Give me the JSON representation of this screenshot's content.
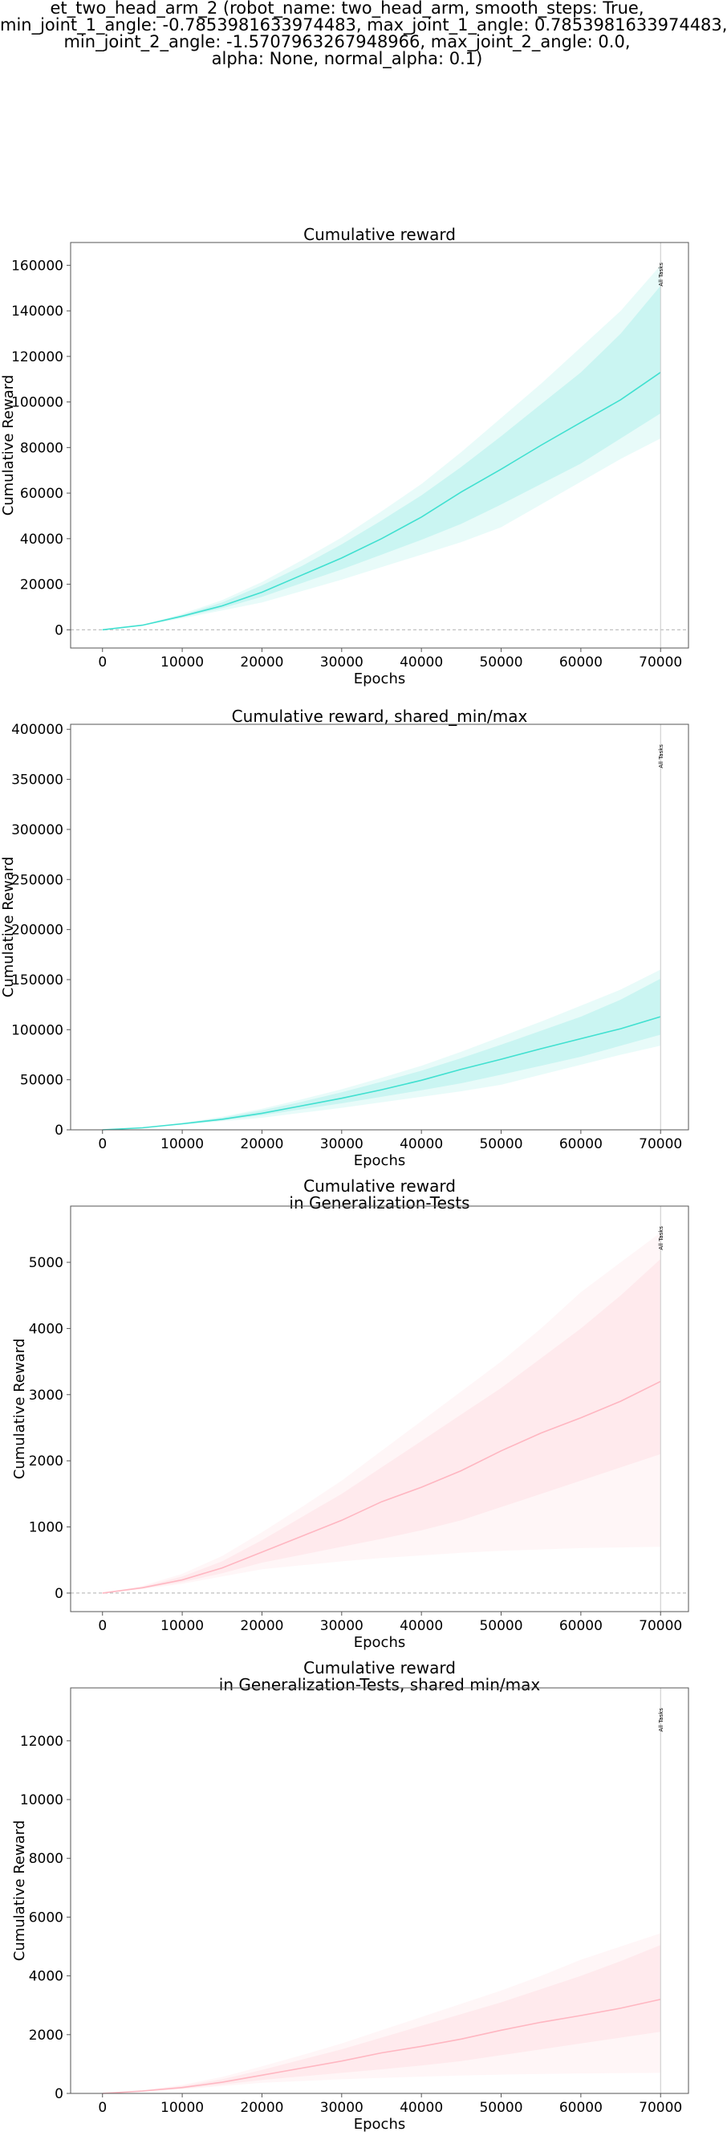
{
  "suptitle": [
    "et_two_head_arm_2 (robot_name: two_head_arm, smooth_steps: True,",
    "min_joint_1_angle: -0.7853981633974483, max_joint_1_angle: 0.7853981633974483,",
    "min_joint_2_angle: -1.5707963267948966, max_joint_2_angle: 0.0,",
    "alpha: None, normal_alpha: 0.1)"
  ],
  "chart_data": [
    {
      "type": "line",
      "title": [
        "Cumulative reward"
      ],
      "xlabel": "Epochs",
      "ylabel": "Cumulative Reward",
      "xlim": [
        -4000,
        73500
      ],
      "ylim": [
        -8000,
        170000
      ],
      "xticks": [
        0,
        10000,
        20000,
        30000,
        40000,
        50000,
        60000,
        70000
      ],
      "yticks": [
        0,
        20000,
        40000,
        60000,
        80000,
        100000,
        120000,
        140000,
        160000
      ],
      "zero_line": true,
      "vline": {
        "x": 70000,
        "label": "All Tasks"
      },
      "color": "#40e0d0",
      "x": [
        0,
        5000,
        10000,
        15000,
        20000,
        25000,
        30000,
        35000,
        40000,
        45000,
        50000,
        55000,
        60000,
        65000,
        70000
      ],
      "series": [
        {
          "values": [
            0,
            2000,
            6000,
            10500,
            16500,
            24000,
            31500,
            40000,
            49500,
            60500,
            70500,
            81000,
            91000,
            101000,
            113000
          ]
        }
      ],
      "band_outer": {
        "lower": [
          0,
          1800,
          5000,
          8500,
          12000,
          17000,
          22000,
          27500,
          33000,
          38500,
          45000,
          55000,
          65000,
          75000,
          84000
        ],
        "upper": [
          0,
          2200,
          7000,
          13000,
          21000,
          30500,
          40500,
          52000,
          64000,
          78000,
          93000,
          108000,
          124000,
          140000,
          160000
        ]
      },
      "band_inner": {
        "lower": [
          0,
          1900,
          5500,
          9500,
          14500,
          20500,
          26500,
          33000,
          39500,
          46500,
          55000,
          64000,
          73000,
          84000,
          95000
        ],
        "upper": [
          0,
          2100,
          6500,
          12000,
          19500,
          28000,
          37500,
          48000,
          59000,
          71500,
          85000,
          99000,
          113000,
          130000,
          151000
        ]
      }
    },
    {
      "type": "line",
      "title": [
        "Cumulative reward, shared_min/max"
      ],
      "xlabel": "Epochs",
      "ylabel": "Cumulative Reward",
      "xlim": [
        -4000,
        73500
      ],
      "ylim": [
        0,
        405000
      ],
      "xticks": [
        0,
        10000,
        20000,
        30000,
        40000,
        50000,
        60000,
        70000
      ],
      "yticks": [
        0,
        50000,
        100000,
        150000,
        200000,
        250000,
        300000,
        350000,
        400000
      ],
      "zero_line": false,
      "vline": {
        "x": 70000,
        "label": "All Tasks"
      },
      "color": "#40e0d0",
      "x": [
        0,
        5000,
        10000,
        15000,
        20000,
        25000,
        30000,
        35000,
        40000,
        45000,
        50000,
        55000,
        60000,
        65000,
        70000
      ],
      "series": [
        {
          "values": [
            0,
            2000,
            6000,
            10500,
            16500,
            24000,
            31500,
            40000,
            49500,
            60500,
            70500,
            81000,
            91000,
            101000,
            113000
          ]
        }
      ],
      "band_outer": {
        "lower": [
          0,
          1800,
          5000,
          8500,
          12000,
          17000,
          22000,
          27500,
          33000,
          38500,
          45000,
          55000,
          65000,
          75000,
          84000
        ],
        "upper": [
          0,
          2200,
          7000,
          13000,
          21000,
          30500,
          40500,
          52000,
          64000,
          78000,
          93000,
          108000,
          124000,
          140000,
          160000
        ]
      },
      "band_inner": {
        "lower": [
          0,
          1900,
          5500,
          9500,
          14500,
          20500,
          26500,
          33000,
          39500,
          46500,
          55000,
          64000,
          73000,
          84000,
          95000
        ],
        "upper": [
          0,
          2100,
          6500,
          12000,
          19500,
          28000,
          37500,
          48000,
          59000,
          71500,
          85000,
          99000,
          113000,
          130000,
          151000
        ]
      }
    },
    {
      "type": "line",
      "title": [
        "Cumulative reward",
        "in Generalization-Tests"
      ],
      "xlabel": "Epochs",
      "ylabel": "Cumulative Reward",
      "xlim": [
        -4000,
        73500
      ],
      "ylim": [
        -280,
        5850
      ],
      "xticks": [
        0,
        10000,
        20000,
        30000,
        40000,
        50000,
        60000,
        70000
      ],
      "yticks": [
        0,
        1000,
        2000,
        3000,
        4000,
        5000
      ],
      "zero_line": true,
      "vline": {
        "x": 70000,
        "label": "All Tasks"
      },
      "color": "#ffb6c1",
      "x": [
        0,
        5000,
        10000,
        15000,
        20000,
        25000,
        30000,
        35000,
        40000,
        45000,
        50000,
        55000,
        60000,
        65000,
        70000
      ],
      "series": [
        {
          "values": [
            0,
            80,
            200,
            380,
            620,
            860,
            1100,
            1380,
            1600,
            1850,
            2150,
            2420,
            2650,
            2900,
            3200
          ]
        }
      ],
      "band_outer": {
        "lower": [
          0,
          60,
          140,
          250,
          360,
          420,
          480,
          530,
          570,
          610,
          640,
          660,
          680,
          690,
          700
        ],
        "upper": [
          0,
          110,
          290,
          560,
          920,
          1300,
          1700,
          2150,
          2600,
          3050,
          3500,
          4000,
          4550,
          5000,
          5450
        ]
      },
      "band_inner": {
        "lower": [
          0,
          70,
          165,
          300,
          460,
          580,
          700,
          820,
          950,
          1100,
          1300,
          1500,
          1700,
          1900,
          2100
        ],
        "upper": [
          0,
          95,
          250,
          480,
          800,
          1150,
          1500,
          1900,
          2300,
          2700,
          3100,
          3550,
          4000,
          4500,
          5050
        ]
      }
    },
    {
      "type": "line",
      "title": [
        "Cumulative reward",
        "in Generalization-Tests, shared min/max"
      ],
      "xlabel": "Epochs",
      "ylabel": "Cumulative Reward",
      "xlim": [
        -4000,
        73500
      ],
      "ylim": [
        0,
        13800
      ],
      "xticks": [
        0,
        10000,
        20000,
        30000,
        40000,
        50000,
        60000,
        70000
      ],
      "yticks": [
        0,
        2000,
        4000,
        6000,
        8000,
        10000,
        12000
      ],
      "zero_line": false,
      "vline": {
        "x": 70000,
        "label": "All Tasks"
      },
      "color": "#ffb6c1",
      "x": [
        0,
        5000,
        10000,
        15000,
        20000,
        25000,
        30000,
        35000,
        40000,
        45000,
        50000,
        55000,
        60000,
        65000,
        70000
      ],
      "series": [
        {
          "values": [
            0,
            80,
            200,
            380,
            620,
            860,
            1100,
            1380,
            1600,
            1850,
            2150,
            2420,
            2650,
            2900,
            3200
          ]
        }
      ],
      "band_outer": {
        "lower": [
          0,
          60,
          140,
          250,
          360,
          420,
          480,
          530,
          570,
          610,
          640,
          660,
          680,
          690,
          700
        ],
        "upper": [
          0,
          110,
          290,
          560,
          920,
          1300,
          1700,
          2150,
          2600,
          3050,
          3500,
          4000,
          4550,
          5000,
          5450
        ]
      },
      "band_inner": {
        "lower": [
          0,
          70,
          165,
          300,
          460,
          580,
          700,
          820,
          950,
          1100,
          1300,
          1500,
          1700,
          1900,
          2100
        ],
        "upper": [
          0,
          95,
          250,
          480,
          800,
          1150,
          1500,
          1900,
          2300,
          2700,
          3100,
          3550,
          4000,
          4500,
          5050
        ]
      }
    }
  ]
}
